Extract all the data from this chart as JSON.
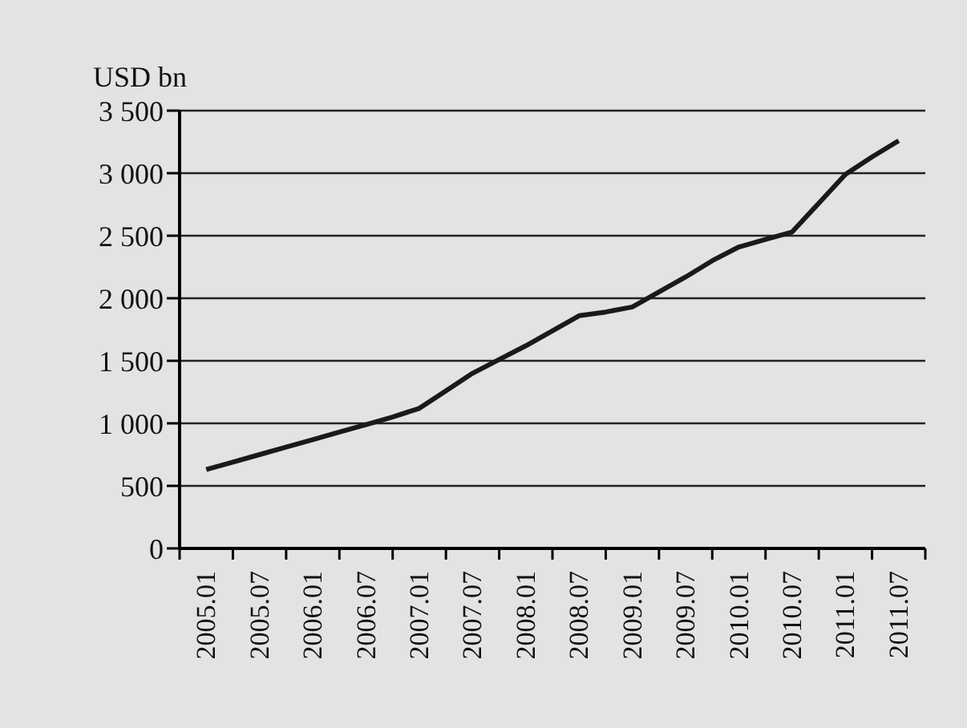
{
  "chart_data": {
    "type": "line",
    "ylabel": "USD bn",
    "categories": [
      "2005.01",
      null,
      "2005.07",
      null,
      "2006.01",
      null,
      "2006.07",
      null,
      "2007.01",
      null,
      "2007.07",
      null,
      "2008.01",
      null,
      "2008.07",
      null,
      "2009.01",
      null,
      "2009.07",
      null,
      "2010.01",
      null,
      "2010.07",
      null,
      "2011.01",
      null,
      "2011.07"
    ],
    "series": [
      {
        "color": "#1a1a1a",
        "values": [
          630,
          690,
          750,
          810,
          870,
          930,
          990,
          1050,
          1120,
          1260,
          1400,
          1510,
          1620,
          1740,
          1860,
          1890,
          1930,
          2050,
          2170,
          2300,
          2410,
          2470,
          2530,
          2760,
          2990,
          3130,
          3260
        ]
      }
    ],
    "ylim": [
      0,
      3500
    ],
    "yticks": [
      0,
      500,
      {
        "value": 1000,
        "label": "1 000"
      },
      {
        "value": 1500,
        "label": "1 500"
      },
      {
        "value": 2000,
        "label": "2 000"
      },
      {
        "value": 2500,
        "label": "2 500"
      },
      {
        "value": 3000,
        "label": "3 000"
      },
      {
        "value": 3500,
        "label": "3 500"
      }
    ],
    "grid": "y",
    "marker": "none",
    "line_style": "solid"
  }
}
